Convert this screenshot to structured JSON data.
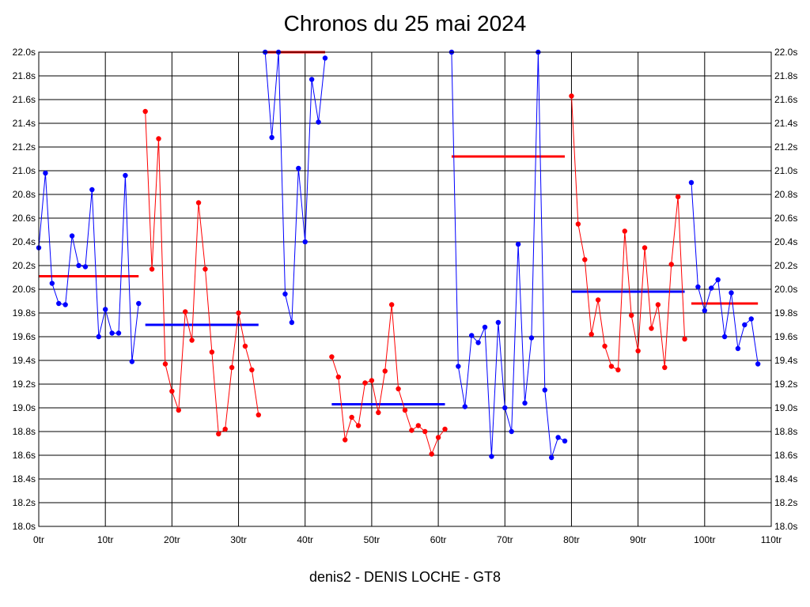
{
  "chart_data": {
    "type": "line",
    "title": "Chronos du 25 mai 2024",
    "footer": "denis2 - DENIS LOCHE - GT8",
    "xlim": [
      0,
      110
    ],
    "ylim": [
      18.0,
      22.0
    ],
    "x_ticks": [
      0,
      10,
      20,
      30,
      40,
      50,
      60,
      70,
      80,
      90,
      100,
      110
    ],
    "x_tick_labels": [
      "0tr",
      "10tr",
      "20tr",
      "30tr",
      "40tr",
      "50tr",
      "60tr",
      "70tr",
      "80tr",
      "90tr",
      "100tr",
      "110tr"
    ],
    "y_ticks": [
      18.0,
      18.2,
      18.4,
      18.6,
      18.8,
      19.0,
      19.2,
      19.4,
      19.6,
      19.8,
      20.0,
      20.2,
      20.4,
      20.6,
      20.8,
      21.0,
      21.2,
      21.4,
      21.6,
      21.8,
      22.0
    ],
    "y_tick_labels": [
      "18.0s",
      "18.2s",
      "18.4s",
      "18.6s",
      "18.8s",
      "19.0s",
      "19.2s",
      "19.4s",
      "19.6s",
      "19.8s",
      "20.0s",
      "20.2s",
      "20.4s",
      "20.6s",
      "20.8s",
      "21.0s",
      "21.2s",
      "21.4s",
      "21.6s",
      "21.8s",
      "22.0s"
    ],
    "grid": true,
    "series": [
      {
        "color": "#0000ff",
        "x": [
          0,
          1,
          2,
          3,
          4,
          5,
          6,
          7,
          8,
          9,
          10,
          11,
          12,
          13,
          14,
          15
        ],
        "y": [
          20.35,
          20.98,
          20.05,
          19.88,
          19.87,
          20.45,
          20.2,
          20.19,
          20.84,
          19.6,
          19.83,
          19.63,
          19.63,
          20.96,
          19.39,
          19.88
        ]
      },
      {
        "color": "#ff0000",
        "x": [
          16,
          17,
          18,
          19,
          20,
          21,
          22,
          23,
          24,
          25,
          26,
          27,
          28,
          29,
          30,
          31,
          32,
          33
        ],
        "y": [
          21.5,
          20.17,
          21.27,
          19.37,
          19.14,
          18.98,
          19.81,
          19.57,
          20.73,
          20.17,
          19.47,
          18.78,
          18.82,
          19.34,
          19.8,
          19.52,
          19.32,
          18.94
        ]
      },
      {
        "color": "#0000ff",
        "x": [
          34,
          35,
          36,
          37,
          38,
          39,
          40,
          41,
          42,
          43
        ],
        "y": [
          22.0,
          21.28,
          22.0,
          19.96,
          19.72,
          21.02,
          20.4,
          21.77,
          21.41,
          21.95
        ]
      },
      {
        "color": "#ff0000",
        "x": [
          44,
          45,
          46,
          47,
          48,
          49,
          50,
          51,
          52,
          53,
          54,
          55,
          56,
          57,
          58,
          59,
          60,
          61
        ],
        "y": [
          19.43,
          19.26,
          18.73,
          18.92,
          18.85,
          19.21,
          19.23,
          18.96,
          19.31,
          19.87,
          19.16,
          18.98,
          18.81,
          18.85,
          18.8,
          18.61,
          18.75,
          18.82
        ]
      },
      {
        "color": "#0000ff",
        "x": [
          62,
          63,
          64,
          65,
          66,
          67,
          68,
          69,
          70,
          71,
          72,
          73,
          74,
          75,
          76,
          77,
          78,
          79
        ],
        "y": [
          22.0,
          19.35,
          19.01,
          19.61,
          19.55,
          19.68,
          18.59,
          19.72,
          19.0,
          18.8,
          20.38,
          19.04,
          19.59,
          22.0,
          19.15,
          18.58,
          18.75,
          18.72
        ]
      },
      {
        "color": "#ff0000",
        "x": [
          80,
          81,
          82,
          83,
          84,
          85,
          86,
          87,
          88,
          89,
          90,
          91,
          92,
          93,
          94,
          95,
          96,
          97
        ],
        "y": [
          21.63,
          20.55,
          20.25,
          19.62,
          19.91,
          19.52,
          19.35,
          19.32,
          20.49,
          19.78,
          19.48,
          20.35,
          19.67,
          19.87,
          19.34,
          20.21,
          20.78,
          19.58
        ]
      },
      {
        "color": "#0000ff",
        "x": [
          98,
          99,
          100,
          101,
          102,
          103,
          104,
          105,
          106,
          107,
          108
        ],
        "y": [
          20.9,
          20.02,
          19.82,
          20.01,
          20.08,
          19.6,
          19.97,
          19.5,
          19.7,
          19.75,
          19.37
        ]
      }
    ],
    "averages": [
      {
        "color": "#ff0000",
        "x": [
          0,
          15
        ],
        "y": 20.11
      },
      {
        "color": "#0000ff",
        "x": [
          16,
          33
        ],
        "y": 19.7
      },
      {
        "color": "#ff0000",
        "x": [
          34,
          43
        ],
        "y": 22.0
      },
      {
        "color": "#0000ff",
        "x": [
          44,
          61
        ],
        "y": 19.03
      },
      {
        "color": "#ff0000",
        "x": [
          62,
          79
        ],
        "y": 21.12
      },
      {
        "color": "#0000ff",
        "x": [
          80,
          97
        ],
        "y": 19.98
      },
      {
        "color": "#ff0000",
        "x": [
          98,
          108
        ],
        "y": 19.88
      }
    ]
  }
}
